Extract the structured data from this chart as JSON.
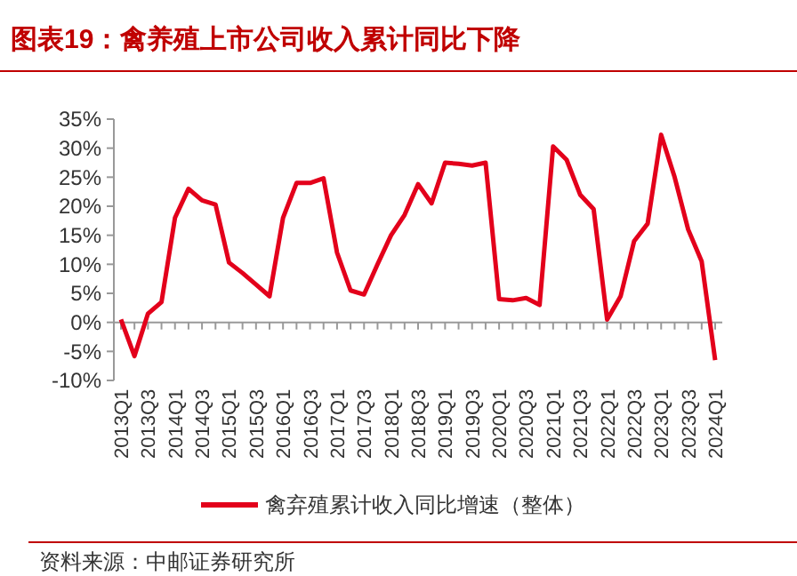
{
  "chart_data": {
    "type": "line",
    "title": "图表19：禽养殖上市公司收入累计同比下降",
    "categories": [
      "2013Q1",
      null,
      "2013Q3",
      null,
      "2014Q1",
      null,
      "2014Q3",
      null,
      "2015Q1",
      null,
      "2015Q3",
      null,
      "2016Q1",
      null,
      "2016Q3",
      null,
      "2017Q1",
      null,
      "2017Q3",
      null,
      "2018Q1",
      null,
      "2018Q3",
      null,
      "2019Q1",
      null,
      "2019Q3",
      null,
      "2020Q1",
      null,
      "2020Q3",
      null,
      "2021Q1",
      null,
      "2021Q3",
      null,
      "2022Q1",
      null,
      "2022Q3",
      null,
      "2023Q1",
      null,
      "2023Q3",
      null,
      "2024Q1"
    ],
    "series": [
      {
        "name": "禽弃殖累计收入同比增速（整体）",
        "color": "#e3001b",
        "values": [
          0.5,
          -5.8,
          1.5,
          3.5,
          18,
          23,
          21,
          20.3,
          10.3,
          8.5,
          6.5,
          4.5,
          18,
          24,
          24,
          24.8,
          12,
          5.5,
          4.8,
          10,
          15,
          18.5,
          23.8,
          20.5,
          27.5,
          27.3,
          27,
          27.5,
          4,
          3.8,
          4.2,
          3,
          30.3,
          28,
          22,
          19.5,
          0.5,
          4.5,
          14,
          17,
          32.3,
          25,
          16,
          10.5,
          -6.5
        ]
      }
    ],
    "ylim": [
      -10,
      35
    ],
    "yticks": [
      {
        "value": -10,
        "label": "-10%"
      },
      {
        "value": -5,
        "label": "-5%"
      },
      {
        "value": 0,
        "label": "0%"
      },
      {
        "value": 5,
        "label": "5%"
      },
      {
        "value": 10,
        "label": "10%"
      },
      {
        "value": 15,
        "label": "15%"
      },
      {
        "value": 20,
        "label": "20%"
      },
      {
        "value": 25,
        "label": "25%"
      },
      {
        "value": 30,
        "label": "30%"
      },
      {
        "value": 35,
        "label": "35%"
      }
    ],
    "legend": "bottom",
    "marker": "none",
    "line_style": "solid",
    "annotations": [
      "资料来源：中邮证券研究所"
    ]
  }
}
